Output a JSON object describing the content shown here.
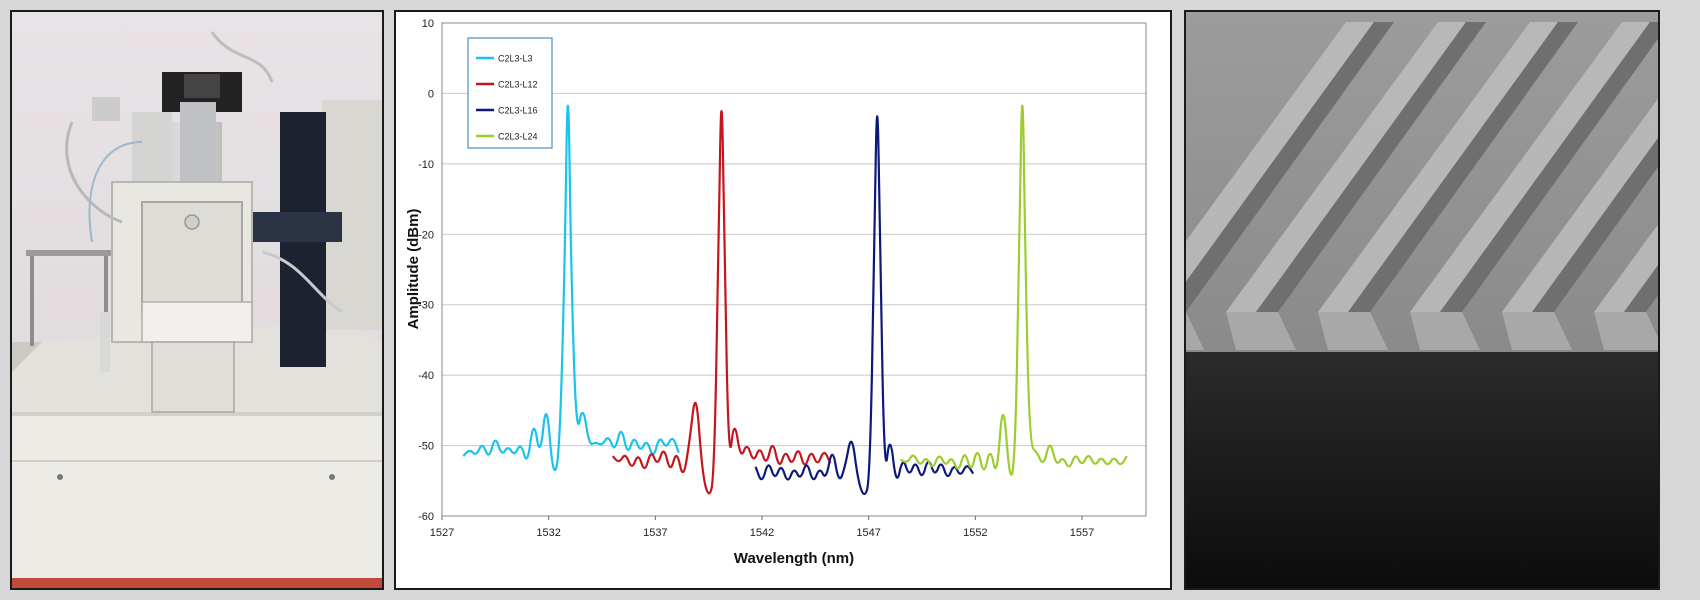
{
  "figure": {
    "left_image": "equipment-photo",
    "right_image": "grating-sem-micrograph"
  },
  "chart_data": {
    "type": "line",
    "xlabel": "Wavelength (nm)",
    "ylabel": "Amplitude (dBm)",
    "xlim": [
      1527,
      1560
    ],
    "ylim": [
      -60,
      10
    ],
    "x_ticks": [
      1527,
      1532,
      1537,
      1542,
      1547,
      1552,
      1557
    ],
    "y_ticks": [
      -60,
      -50,
      -40,
      -30,
      -20,
      -10,
      0,
      10
    ],
    "grid": "horizontal",
    "legend": "top-left",
    "series": [
      {
        "name": "C2L3-L3",
        "color": "#19c3ec",
        "points": [
          [
            1528,
            -51.5
          ],
          [
            1528.3,
            -50.5
          ],
          [
            1528.6,
            -51.5
          ],
          [
            1528.9,
            -49.5
          ],
          [
            1529.2,
            -52
          ],
          [
            1529.5,
            -48.5
          ],
          [
            1529.8,
            -51.5
          ],
          [
            1530.1,
            -50
          ],
          [
            1530.4,
            -51.5
          ],
          [
            1530.7,
            -49.5
          ],
          [
            1531,
            -53
          ],
          [
            1531.3,
            -46
          ],
          [
            1531.6,
            -52
          ],
          [
            1531.9,
            -43
          ],
          [
            1532.2,
            -54.5
          ],
          [
            1532.5,
            -52
          ],
          [
            1532.75,
            -25
          ],
          [
            1532.9,
            6
          ],
          [
            1533.05,
            -25
          ],
          [
            1533.3,
            -49
          ],
          [
            1533.6,
            -44
          ],
          [
            1533.9,
            -50
          ],
          [
            1534.2,
            -49.5
          ],
          [
            1534.5,
            -50
          ],
          [
            1534.8,
            -48.5
          ],
          [
            1535.1,
            -51
          ],
          [
            1535.4,
            -47
          ],
          [
            1535.7,
            -51.5
          ],
          [
            1536,
            -48.5
          ],
          [
            1536.3,
            -51
          ],
          [
            1536.6,
            -49
          ],
          [
            1536.9,
            -52
          ],
          [
            1537.2,
            -48.5
          ],
          [
            1537.5,
            -50.5
          ],
          [
            1537.8,
            -48.5
          ],
          [
            1538.1,
            -51
          ]
        ]
      },
      {
        "name": "C2L3-L12",
        "color": "#c4161c",
        "points": [
          [
            1535,
            -51.5
          ],
          [
            1535.3,
            -52.5
          ],
          [
            1535.6,
            -51
          ],
          [
            1535.9,
            -53.5
          ],
          [
            1536.2,
            -51
          ],
          [
            1536.5,
            -54
          ],
          [
            1536.8,
            -50.5
          ],
          [
            1537.1,
            -53
          ],
          [
            1537.4,
            -50
          ],
          [
            1537.7,
            -54
          ],
          [
            1538,
            -50.5
          ],
          [
            1538.3,
            -55
          ],
          [
            1538.6,
            -49.5
          ],
          [
            1538.9,
            -41.5
          ],
          [
            1539.2,
            -54
          ],
          [
            1539.5,
            -57.5
          ],
          [
            1539.75,
            -55
          ],
          [
            1539.95,
            -25
          ],
          [
            1540.1,
            5
          ],
          [
            1540.25,
            -25
          ],
          [
            1540.45,
            -53
          ],
          [
            1540.7,
            -46
          ],
          [
            1541,
            -52
          ],
          [
            1541.3,
            -49.5
          ],
          [
            1541.6,
            -52.5
          ],
          [
            1541.9,
            -50
          ],
          [
            1542.2,
            -53
          ],
          [
            1542.5,
            -49
          ],
          [
            1542.8,
            -53.5
          ],
          [
            1543.1,
            -50.5
          ],
          [
            1543.4,
            -53
          ],
          [
            1543.7,
            -50
          ],
          [
            1544,
            -53.5
          ],
          [
            1544.3,
            -50.5
          ],
          [
            1544.6,
            -53
          ],
          [
            1544.9,
            -50.5
          ],
          [
            1545.2,
            -52.5
          ]
        ]
      },
      {
        "name": "C2L3-L16",
        "color": "#0b1a7a",
        "points": [
          [
            1541.7,
            -53
          ],
          [
            1542,
            -55.5
          ],
          [
            1542.3,
            -52
          ],
          [
            1542.6,
            -55
          ],
          [
            1542.9,
            -52.5
          ],
          [
            1543.2,
            -55.5
          ],
          [
            1543.5,
            -53
          ],
          [
            1543.8,
            -55
          ],
          [
            1544.1,
            -52
          ],
          [
            1544.4,
            -55.5
          ],
          [
            1544.7,
            -53
          ],
          [
            1545,
            -55
          ],
          [
            1545.3,
            -50
          ],
          [
            1545.6,
            -55.5
          ],
          [
            1545.9,
            -53
          ],
          [
            1546.2,
            -48
          ],
          [
            1546.5,
            -55
          ],
          [
            1546.8,
            -57.5
          ],
          [
            1547.05,
            -55
          ],
          [
            1547.25,
            -25
          ],
          [
            1547.4,
            4
          ],
          [
            1547.55,
            -25
          ],
          [
            1547.75,
            -55
          ],
          [
            1548,
            -48
          ],
          [
            1548.3,
            -56
          ],
          [
            1548.6,
            -51.5
          ],
          [
            1548.9,
            -54.5
          ],
          [
            1549.2,
            -52
          ],
          [
            1549.5,
            -55
          ],
          [
            1549.8,
            -51.5
          ],
          [
            1550.1,
            -54.5
          ],
          [
            1550.4,
            -52
          ],
          [
            1550.7,
            -55
          ],
          [
            1551,
            -52.5
          ],
          [
            1551.3,
            -54.5
          ],
          [
            1551.6,
            -52.5
          ],
          [
            1551.9,
            -54
          ]
        ]
      },
      {
        "name": "C2L3-L24",
        "color": "#9ccc2e",
        "points": [
          [
            1548.5,
            -52
          ],
          [
            1548.8,
            -52.5
          ],
          [
            1549.1,
            -51
          ],
          [
            1549.4,
            -53
          ],
          [
            1549.7,
            -51.5
          ],
          [
            1550,
            -53.5
          ],
          [
            1550.3,
            -51
          ],
          [
            1550.6,
            -53
          ],
          [
            1550.9,
            -51.5
          ],
          [
            1551.2,
            -54
          ],
          [
            1551.5,
            -50.5
          ],
          [
            1551.8,
            -54
          ],
          [
            1552.1,
            -50
          ],
          [
            1552.4,
            -54.5
          ],
          [
            1552.7,
            -50
          ],
          [
            1553,
            -55
          ],
          [
            1553.3,
            -42.5
          ],
          [
            1553.6,
            -55
          ],
          [
            1553.85,
            -53
          ],
          [
            1554.05,
            -25
          ],
          [
            1554.2,
            6
          ],
          [
            1554.35,
            -25
          ],
          [
            1554.55,
            -50
          ],
          [
            1554.9,
            -51
          ],
          [
            1555.2,
            -53
          ],
          [
            1555.5,
            -49
          ],
          [
            1555.8,
            -53
          ],
          [
            1556.1,
            -51.5
          ],
          [
            1556.4,
            -53.5
          ],
          [
            1556.7,
            -51
          ],
          [
            1557,
            -53
          ],
          [
            1557.3,
            -51
          ],
          [
            1557.6,
            -53
          ],
          [
            1557.9,
            -51.5
          ],
          [
            1558.2,
            -53
          ],
          [
            1558.5,
            -51.5
          ],
          [
            1558.8,
            -53
          ],
          [
            1559.1,
            -51.5
          ]
        ]
      }
    ]
  }
}
